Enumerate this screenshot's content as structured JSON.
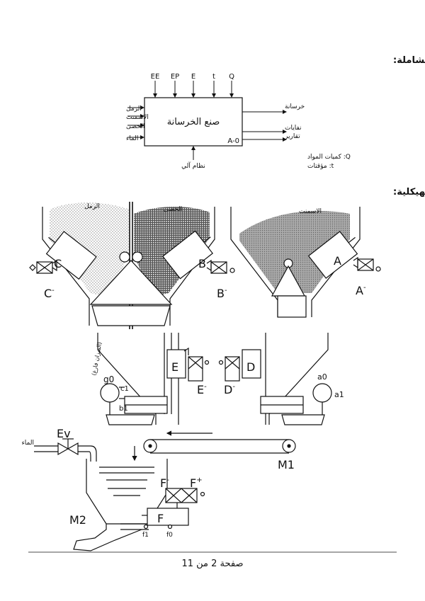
{
  "sections": {
    "global_function": "الوظيفة الشاملة:",
    "structural_handling": "المناولة الهيكلية:"
  },
  "a0_block": {
    "title": "صنع الخرسانة",
    "id": "A-0",
    "top_inputs": [
      "EE",
      "EP",
      "E",
      "t",
      "Q"
    ],
    "left_inputs": [
      "الرمل",
      "الاسمنت",
      "الحصى",
      "الماء"
    ],
    "outputs": [
      "خرسانة",
      "نفايات",
      "تقارير"
    ],
    "control": "نظام آلي",
    "legend": [
      "Q: كميات المواد",
      "t: مؤقتات"
    ]
  },
  "silos": {
    "sand": "الرمل",
    "gravel": "الحصى",
    "cement": "الاسمنت"
  },
  "labels": {
    "C": "C",
    "C_minus": "C",
    "B": "B",
    "B_minus": "B",
    "A": "A",
    "A_minus": "A",
    "E": "E",
    "E_minus": "E",
    "D": "D",
    "D_minus": "D",
    "g0": "g0",
    "c1": "c1",
    "b1": "b1",
    "empty_weight": "(الميزان فارغ)",
    "a0": "a0",
    "a1": "a1",
    "Ev": "Ev",
    "water": "الماء",
    "M1": "M1",
    "M2": "M2",
    "F": "F",
    "F_minus": "F",
    "F_plus": "F",
    "f1": "f1",
    "f0": "f0"
  },
  "footer": "صفحة 2 من 11"
}
